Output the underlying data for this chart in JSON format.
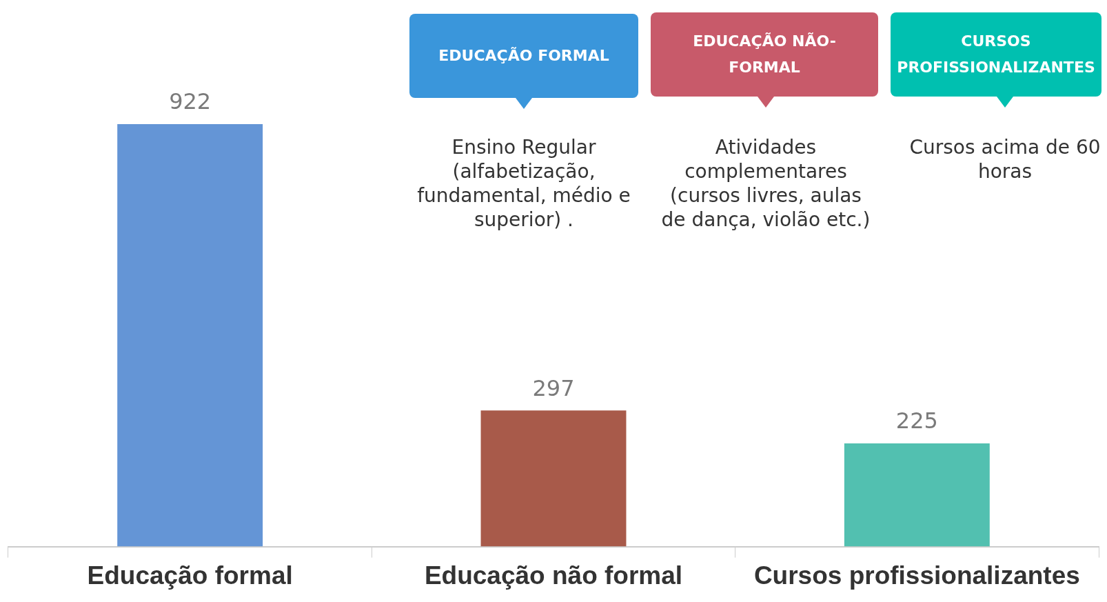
{
  "chart_data": {
    "type": "bar",
    "categories": [
      "Educação formal",
      "Educação não formal",
      "Cursos profissionalizantes"
    ],
    "values": [
      922,
      297,
      225
    ],
    "colors": [
      "#6495d6",
      "#a85a4a",
      "#52c0b0"
    ],
    "data_labels": true,
    "legend": false,
    "grid": false,
    "annotations": [
      "EDUCAÇÃO FORMAL",
      "Ensino Regular (alfabetização, fundamental, médio e superior) .",
      "EDUCAÇÃO NÃO-FORMAL",
      "Atividades complementares (cursos livres, aulas de dança, violão etc.)",
      "CURSOS PROFISSIONALIZANTES",
      "Cursos acima de 60 horas"
    ]
  }
}
